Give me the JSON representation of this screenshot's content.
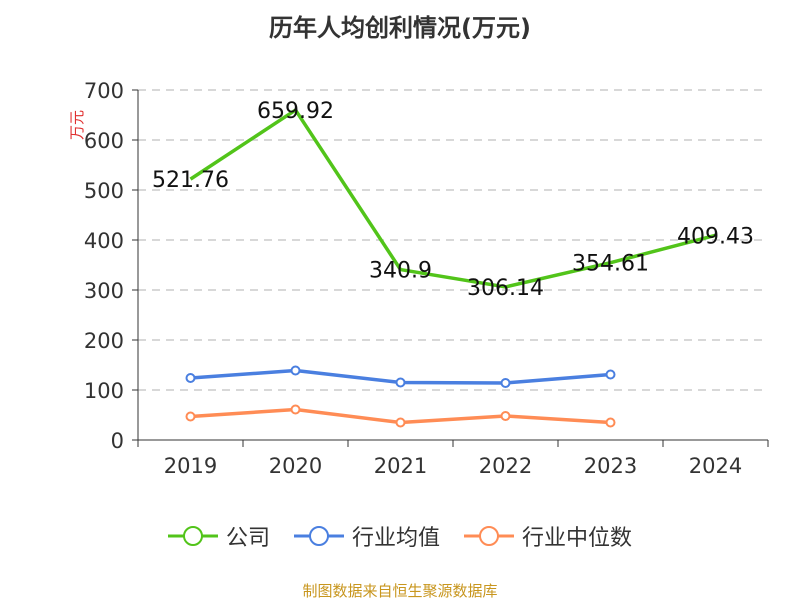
{
  "chart_data": {
    "type": "line",
    "title": "历年人均创利情况(万元)",
    "ylabel": "万元",
    "categories": [
      "2019",
      "2020",
      "2021",
      "2022",
      "2023",
      "2024"
    ],
    "ylim": [
      0,
      700
    ],
    "yticks": [
      0,
      100,
      200,
      300,
      400,
      500,
      600,
      700
    ],
    "grid": true,
    "legend_position": "bottom",
    "series": [
      {
        "name": "公司",
        "color": "#52c41a",
        "values": [
          521.76,
          659.92,
          340.9,
          306.14,
          354.61,
          409.43
        ],
        "labels": [
          "521.76",
          "659.92",
          "340.9",
          "306.14",
          "354.61",
          "409.43"
        ]
      },
      {
        "name": "行业均值",
        "color": "#4a7fe0",
        "values": [
          124,
          139,
          115,
          114,
          131,
          null
        ]
      },
      {
        "name": "行业中位数",
        "color": "#ff8c55",
        "values": [
          47,
          61,
          35,
          48,
          35,
          null
        ]
      }
    ]
  },
  "source": "制图数据来自恒生聚源数据库"
}
